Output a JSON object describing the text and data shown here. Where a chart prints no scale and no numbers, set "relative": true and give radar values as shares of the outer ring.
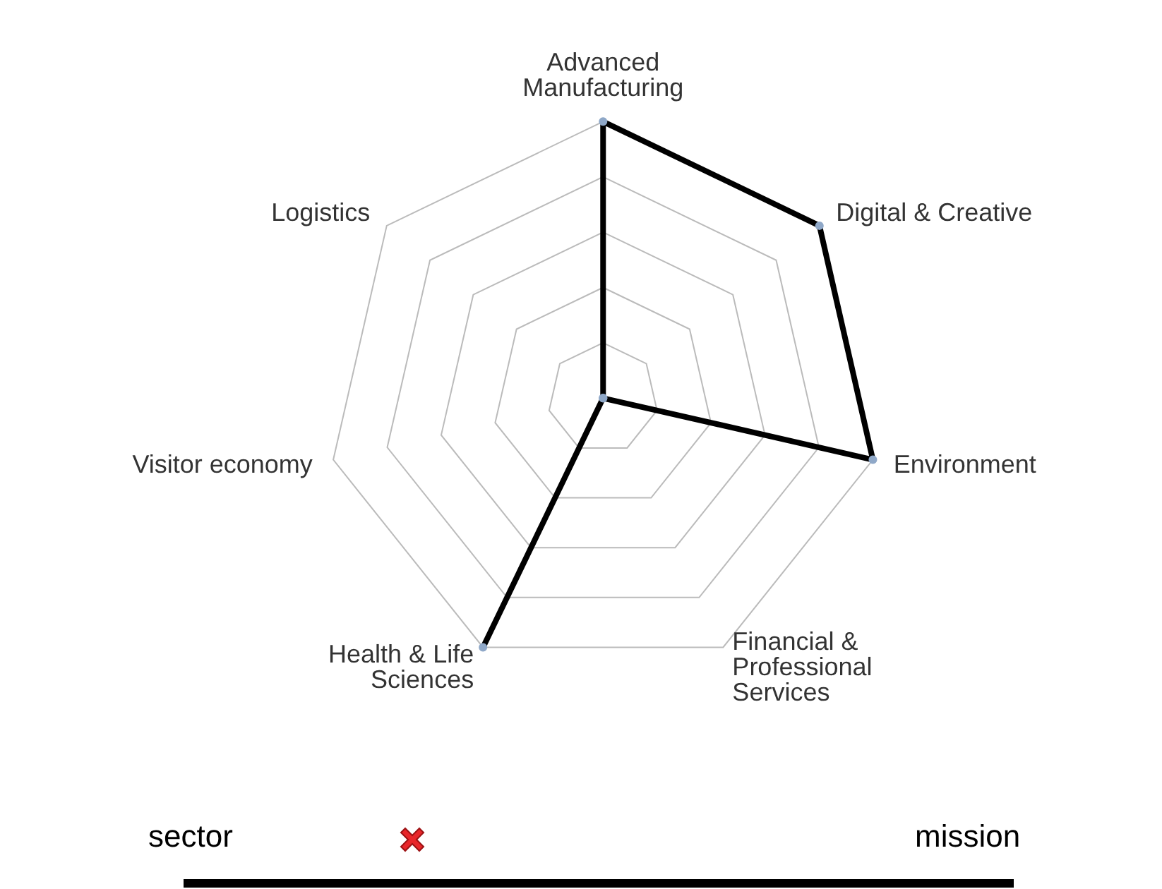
{
  "chart_data": {
    "type": "radar",
    "relative": true,
    "categories": [
      "Advanced Manufacturing",
      "Digital & Creative",
      "Environment",
      "Financial & Professional Services",
      "Health & Life Sciences",
      "Visitor economy",
      "Logistics"
    ],
    "series": [
      {
        "color": "#000000",
        "values": [
          1,
          1,
          1,
          0,
          1,
          0,
          0
        ]
      }
    ],
    "marker": "circle",
    "annotations": [
      "sector",
      "mission"
    ]
  }
}
